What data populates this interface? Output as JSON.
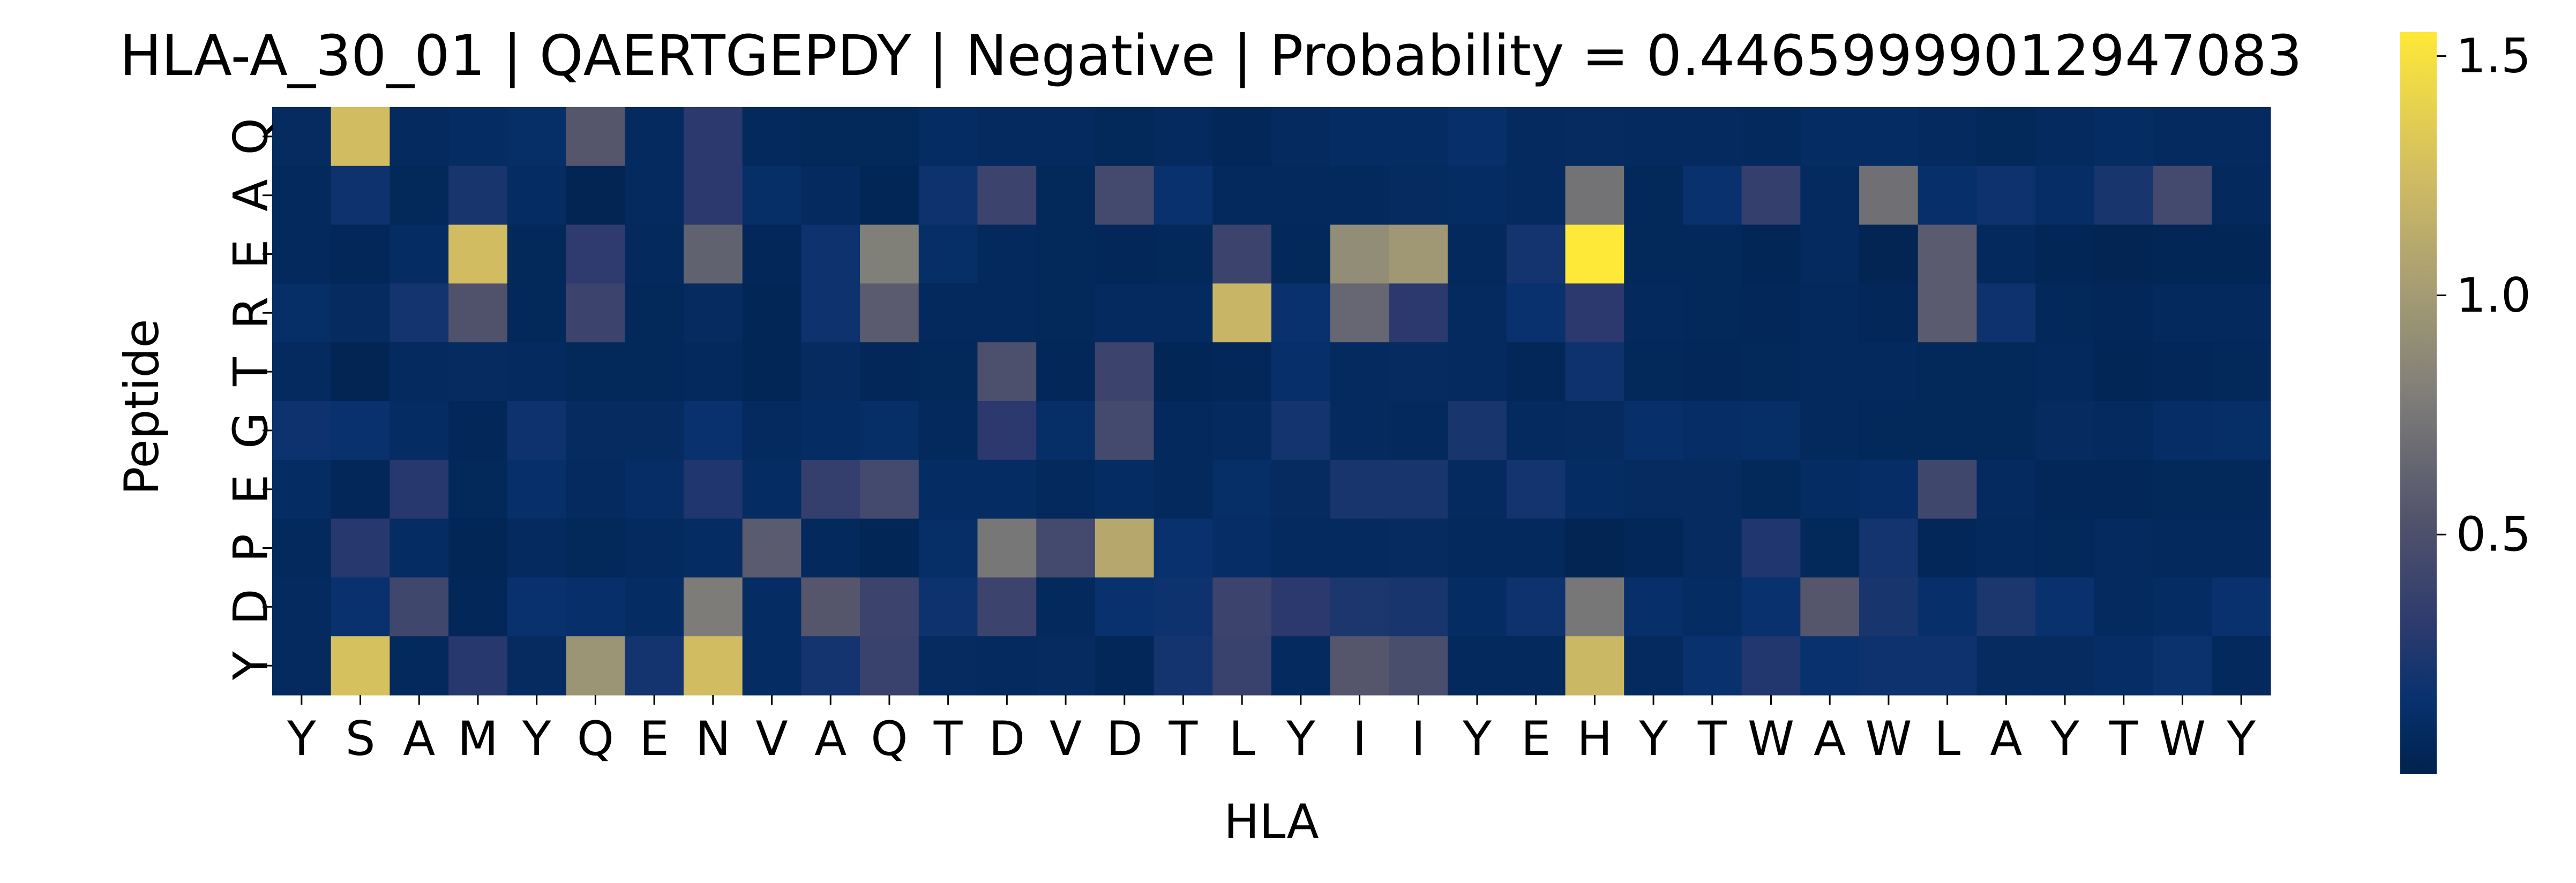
{
  "chart_data": {
    "type": "heatmap",
    "title": "HLA-A_30_01 | QAERTGEPDY | Negative | Probability = 0.44659999012947083",
    "xlabel": "HLA",
    "ylabel": "Peptide",
    "x_categories": [
      "Y",
      "S",
      "A",
      "M",
      "Y",
      "Q",
      "E",
      "N",
      "V",
      "A",
      "Q",
      "T",
      "D",
      "V",
      "D",
      "T",
      "L",
      "Y",
      "I",
      "I",
      "Y",
      "E",
      "H",
      "Y",
      "T",
      "W",
      "A",
      "W",
      "L",
      "A",
      "Y",
      "T",
      "W",
      "Y"
    ],
    "y_categories": [
      "Q",
      "A",
      "E",
      "R",
      "T",
      "G",
      "E",
      "P",
      "D",
      "Y"
    ],
    "colormap": "cividis",
    "colorbar": {
      "range": [
        0.0,
        1.55
      ],
      "ticks": [
        "0.5",
        "1.0",
        "1.5"
      ],
      "tick_values": [
        0.5,
        1.0,
        1.5
      ]
    },
    "values": [
      [
        0.09,
        1.25,
        0.08,
        0.1,
        0.12,
        0.55,
        0.08,
        0.3,
        0.07,
        0.06,
        0.06,
        0.1,
        0.08,
        0.08,
        0.06,
        0.08,
        0.05,
        0.08,
        0.1,
        0.1,
        0.14,
        0.08,
        0.09,
        0.08,
        0.08,
        0.07,
        0.1,
        0.1,
        0.08,
        0.06,
        0.08,
        0.1,
        0.08,
        0.08
      ],
      [
        0.07,
        0.18,
        0.06,
        0.22,
        0.1,
        0.03,
        0.08,
        0.3,
        0.12,
        0.08,
        0.04,
        0.18,
        0.4,
        0.06,
        0.45,
        0.16,
        0.07,
        0.07,
        0.07,
        0.09,
        0.1,
        0.08,
        0.72,
        0.06,
        0.15,
        0.35,
        0.08,
        0.7,
        0.14,
        0.18,
        0.11,
        0.22,
        0.45,
        0.07
      ],
      [
        0.07,
        0.05,
        0.1,
        1.25,
        0.06,
        0.32,
        0.07,
        0.62,
        0.05,
        0.18,
        0.8,
        0.12,
        0.07,
        0.06,
        0.05,
        0.06,
        0.4,
        0.06,
        0.9,
        0.98,
        0.07,
        0.2,
        1.55,
        0.06,
        0.06,
        0.04,
        0.08,
        0.03,
        0.58,
        0.07,
        0.04,
        0.03,
        0.04,
        0.04
      ],
      [
        0.12,
        0.09,
        0.2,
        0.52,
        0.06,
        0.4,
        0.06,
        0.09,
        0.04,
        0.18,
        0.58,
        0.07,
        0.07,
        0.06,
        0.08,
        0.08,
        1.2,
        0.16,
        0.65,
        0.3,
        0.08,
        0.16,
        0.3,
        0.07,
        0.06,
        0.05,
        0.07,
        0.05,
        0.58,
        0.18,
        0.06,
        0.05,
        0.07,
        0.07
      ],
      [
        0.08,
        0.03,
        0.08,
        0.09,
        0.08,
        0.06,
        0.06,
        0.07,
        0.04,
        0.09,
        0.05,
        0.06,
        0.5,
        0.05,
        0.4,
        0.04,
        0.05,
        0.13,
        0.08,
        0.09,
        0.08,
        0.05,
        0.18,
        0.06,
        0.05,
        0.06,
        0.07,
        0.07,
        0.06,
        0.06,
        0.07,
        0.04,
        0.05,
        0.06
      ],
      [
        0.18,
        0.15,
        0.1,
        0.05,
        0.18,
        0.09,
        0.09,
        0.15,
        0.08,
        0.1,
        0.12,
        0.07,
        0.3,
        0.12,
        0.45,
        0.07,
        0.08,
        0.2,
        0.08,
        0.07,
        0.22,
        0.08,
        0.09,
        0.14,
        0.11,
        0.12,
        0.07,
        0.06,
        0.06,
        0.06,
        0.09,
        0.08,
        0.11,
        0.12
      ],
      [
        0.1,
        0.05,
        0.28,
        0.06,
        0.13,
        0.08,
        0.11,
        0.25,
        0.1,
        0.35,
        0.45,
        0.1,
        0.1,
        0.07,
        0.1,
        0.07,
        0.12,
        0.09,
        0.22,
        0.22,
        0.08,
        0.2,
        0.1,
        0.09,
        0.09,
        0.06,
        0.1,
        0.11,
        0.42,
        0.08,
        0.05,
        0.05,
        0.06,
        0.06
      ],
      [
        0.07,
        0.28,
        0.1,
        0.04,
        0.08,
        0.06,
        0.08,
        0.1,
        0.58,
        0.07,
        0.04,
        0.12,
        0.75,
        0.45,
        1.1,
        0.16,
        0.11,
        0.08,
        0.08,
        0.09,
        0.07,
        0.07,
        0.03,
        0.05,
        0.09,
        0.25,
        0.06,
        0.2,
        0.05,
        0.07,
        0.06,
        0.08,
        0.07,
        0.07
      ],
      [
        0.08,
        0.15,
        0.42,
        0.05,
        0.16,
        0.14,
        0.1,
        0.78,
        0.1,
        0.55,
        0.4,
        0.18,
        0.4,
        0.07,
        0.16,
        0.18,
        0.4,
        0.3,
        0.24,
        0.22,
        0.1,
        0.18,
        0.75,
        0.13,
        0.1,
        0.15,
        0.55,
        0.22,
        0.14,
        0.24,
        0.15,
        0.08,
        0.1,
        0.16
      ],
      [
        0.08,
        1.28,
        0.07,
        0.28,
        0.09,
        0.95,
        0.2,
        1.25,
        0.1,
        0.2,
        0.38,
        0.09,
        0.08,
        0.09,
        0.05,
        0.2,
        0.38,
        0.08,
        0.55,
        0.48,
        0.07,
        0.07,
        1.22,
        0.08,
        0.16,
        0.26,
        0.16,
        0.18,
        0.18,
        0.09,
        0.09,
        0.11,
        0.17,
        0.07
      ]
    ]
  }
}
